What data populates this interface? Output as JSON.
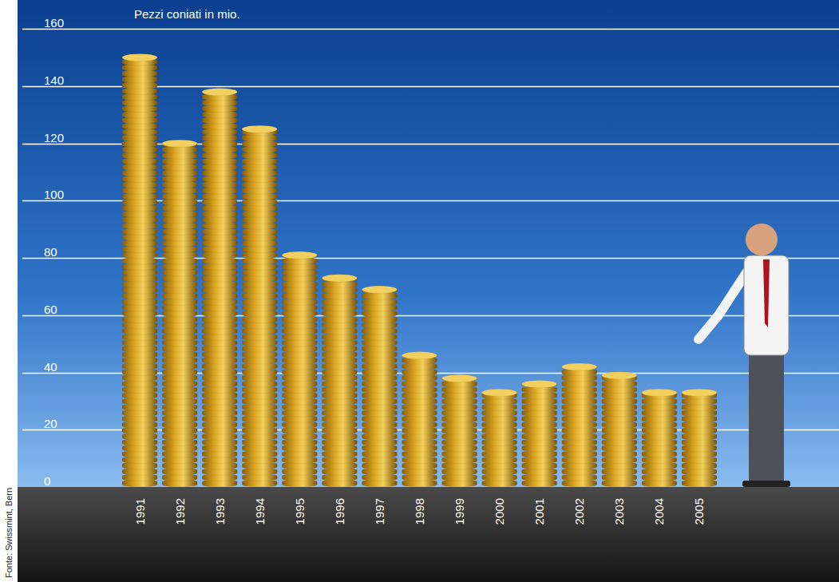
{
  "chart_data": {
    "type": "bar",
    "title": "Pezzi coniati in mio.",
    "annotations": [
      "Fonte: Swissmint, Bern"
    ],
    "categories": [
      "1991",
      "1992",
      "1993",
      "1994",
      "1995",
      "1996",
      "1997",
      "1998",
      "1999",
      "2000",
      "2001",
      "2002",
      "2003",
      "2004",
      "2005"
    ],
    "values": [
      150,
      120,
      138,
      125,
      81,
      73,
      69,
      46,
      38,
      33,
      36,
      42,
      39,
      33,
      33
    ],
    "color": "#d9a521",
    "ylim": [
      0,
      160
    ],
    "yticks": [
      0,
      20,
      40,
      60,
      80,
      100,
      120,
      140,
      160
    ],
    "grid": true
  }
}
